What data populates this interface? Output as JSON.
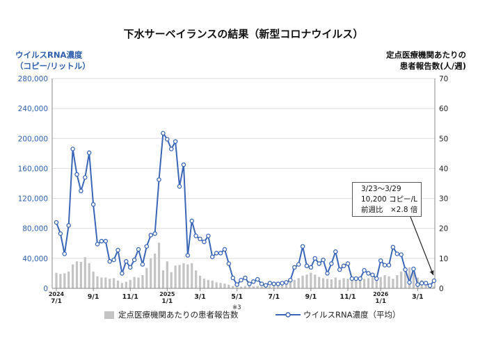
{
  "title": "下水サーベイランスの結果（新型コロナウイルス）",
  "y_left_title": [
    "ウイルスRNA濃度",
    "（コピー/リットル）"
  ],
  "y_right_title": [
    "定点医療機関あたりの",
    "患者報告数(人/週)"
  ],
  "callout": [
    "3/23〜3/29",
    "10,200 コピー/L",
    "前週比　×2.8 倍"
  ],
  "footnote": "※3",
  "legend": {
    "bar": "定点医療機関あたりの患者報告数",
    "line": "ウイルスRNA濃度（平均）"
  },
  "colors": {
    "line": "#3a66b8",
    "bar": "#c4c4c4",
    "left_axis_text": "#2e5fad"
  },
  "chart_data": {
    "type": "bar+line",
    "x_tick_labels": [
      {
        "week": 0,
        "label": "2024\n7/1"
      },
      {
        "week": 9,
        "label": "9/1"
      },
      {
        "week": 18,
        "label": "11/1"
      },
      {
        "week": 27,
        "label": "2025\n1/1"
      },
      {
        "week": 35,
        "label": "3/1"
      },
      {
        "week": 44,
        "label": "5/1"
      },
      {
        "week": 53,
        "label": "7/1"
      },
      {
        "week": 62,
        "label": "9/1"
      },
      {
        "week": 71,
        "label": "11/1"
      },
      {
        "week": 79,
        "label": "2026\n1/1"
      },
      {
        "week": 88,
        "label": "3/1"
      }
    ],
    "y_left": {
      "range": [
        0,
        280000
      ],
      "ticks": [
        "0",
        "40,000",
        "80,000",
        "120,000",
        "160,000",
        "200,000",
        "240,000",
        "280,000"
      ]
    },
    "y_right": {
      "range": [
        0,
        70
      ],
      "ticks": [
        "0",
        "10",
        "20",
        "30",
        "40",
        "50",
        "60",
        "70"
      ]
    },
    "series": [
      {
        "name": "ウイルスRNA濃度（平均）",
        "type": "line",
        "axis": "left",
        "values": [
          88000,
          73000,
          46000,
          84000,
          186000,
          152000,
          130000,
          148000,
          181000,
          112000,
          59000,
          63000,
          63000,
          36000,
          38000,
          51000,
          20000,
          36000,
          28000,
          38000,
          52000,
          32000,
          56000,
          71000,
          73000,
          145000,
          207000,
          199000,
          186000,
          196000,
          136000,
          165000,
          44000,
          90000,
          70000,
          66000,
          62000,
          70000,
          42000,
          47000,
          47000,
          52000,
          33000,
          14000,
          5000,
          11000,
          14000,
          6000,
          9000,
          12000,
          6000,
          4000,
          7000,
          6000,
          6000,
          7000,
          8000,
          11000,
          28000,
          32000,
          56000,
          30000,
          28000,
          40000,
          33000,
          38000,
          20000,
          33000,
          49000,
          25000,
          30000,
          33000,
          13000,
          13000,
          13000,
          24000,
          20000,
          18000,
          13000,
          37000,
          31000,
          31000,
          55000,
          46000,
          45000,
          25000,
          8000,
          26000,
          5000,
          7000,
          7000,
          3600,
          10200
        ]
      },
      {
        "name": "定点医療機関あたりの患者報告数",
        "type": "bar",
        "axis": "right",
        "values": [
          5.2,
          4.8,
          5.0,
          5.6,
          8.0,
          9.0,
          8.8,
          10.4,
          8.4,
          5.6,
          4.0,
          3.6,
          3.6,
          3.2,
          3.4,
          2.6,
          1.8,
          2.2,
          2.8,
          3.8,
          3.6,
          4.4,
          6.8,
          10.0,
          11.6,
          15.2,
          6.0,
          9.0,
          5.4,
          7.6,
          7.8,
          8.4,
          8.0,
          8.4,
          6.0,
          4.2,
          3.2,
          2.8,
          2.6,
          2.0,
          1.8,
          1.6,
          1.2,
          0.8,
          0.4,
          0.6,
          0.8,
          0.8,
          0.7,
          0.8,
          0.6,
          0.6,
          0.8,
          0.9,
          1.2,
          1.4,
          1.8,
          2.2,
          2.8,
          3.4,
          4.2,
          4.6,
          5.2,
          4.6,
          3.8,
          3.4,
          3.2,
          3.0,
          3.6,
          2.8,
          3.4,
          3.2,
          2.6,
          2.8,
          3.0,
          3.2,
          3.4,
          3.6,
          3.6,
          3.8,
          4.4,
          4.0,
          3.2,
          4.4,
          5.6,
          6.2,
          7.0,
          5.4,
          3.6,
          2.8,
          1.8,
          1.2,
          0.6
        ]
      }
    ]
  }
}
